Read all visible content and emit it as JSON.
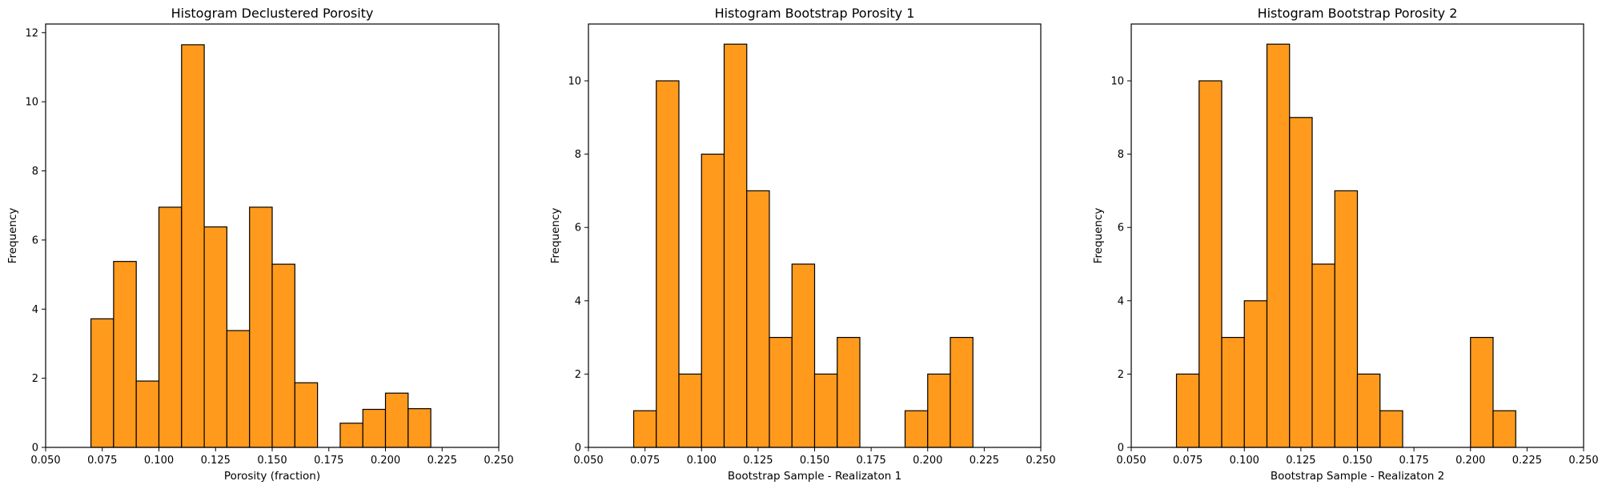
{
  "chart_data": [
    {
      "type": "bar",
      "title": "Histogram Declustered Porosity",
      "xlabel": "Porosity (fraction)",
      "ylabel": "Frequency",
      "xlim": [
        0.05,
        0.25
      ],
      "ylim": [
        0,
        12.25
      ],
      "xticks": [
        "0.050",
        "0.075",
        "0.100",
        "0.125",
        "0.150",
        "0.175",
        "0.200",
        "0.225",
        "0.250"
      ],
      "yticks": [
        "0",
        "2",
        "4",
        "6",
        "8",
        "10",
        "12"
      ],
      "bin_edges": [
        0.07,
        0.08,
        0.09,
        0.1,
        0.11,
        0.12,
        0.13,
        0.14,
        0.15,
        0.16,
        0.17,
        0.18,
        0.19,
        0.2,
        0.21,
        0.22
      ],
      "values": [
        3.72,
        5.38,
        1.92,
        6.95,
        11.65,
        6.38,
        3.38,
        6.95,
        5.3,
        1.87,
        0,
        0.7,
        1.1,
        1.57,
        1.12
      ],
      "bar_color": "#ff9a1c",
      "edge_color": "#000000",
      "grid": false
    },
    {
      "type": "bar",
      "title": "Histogram Bootstrap Porosity 1",
      "xlabel": "Bootstrap Sample - Realizaton 1",
      "ylabel": "Frequency",
      "xlim": [
        0.05,
        0.25
      ],
      "ylim": [
        0,
        11.55
      ],
      "xticks": [
        "0.050",
        "0.075",
        "0.100",
        "0.125",
        "0.150",
        "0.175",
        "0.200",
        "0.225",
        "0.250"
      ],
      "yticks": [
        "0",
        "2",
        "4",
        "6",
        "8",
        "10"
      ],
      "bin_edges": [
        0.07,
        0.08,
        0.09,
        0.1,
        0.11,
        0.12,
        0.13,
        0.14,
        0.15,
        0.16,
        0.17,
        0.18,
        0.19,
        0.2,
        0.21,
        0.22
      ],
      "values": [
        1,
        10,
        2,
        8,
        11,
        7,
        3,
        5,
        2,
        3,
        0,
        0,
        1,
        2,
        3
      ],
      "bar_color": "#ff9a1c",
      "edge_color": "#000000",
      "grid": false
    },
    {
      "type": "bar",
      "title": "Histogram Bootstrap Porosity 2",
      "xlabel": "Bootstrap Sample - Realizaton 2",
      "ylabel": "Frequency",
      "xlim": [
        0.05,
        0.25
      ],
      "ylim": [
        0,
        11.55
      ],
      "xticks": [
        "0.050",
        "0.075",
        "0.100",
        "0.125",
        "0.150",
        "0.175",
        "0.200",
        "0.225",
        "0.250"
      ],
      "yticks": [
        "0",
        "2",
        "4",
        "6",
        "8",
        "10"
      ],
      "bin_edges": [
        0.07,
        0.08,
        0.09,
        0.1,
        0.11,
        0.12,
        0.13,
        0.14,
        0.15,
        0.16,
        0.17,
        0.18,
        0.19,
        0.2,
        0.21,
        0.22
      ],
      "values": [
        2,
        10,
        3,
        4,
        11,
        9,
        5,
        7,
        2,
        1,
        0,
        0,
        0,
        3,
        1
      ],
      "bar_color": "#ff9a1c",
      "edge_color": "#000000",
      "grid": false
    }
  ]
}
